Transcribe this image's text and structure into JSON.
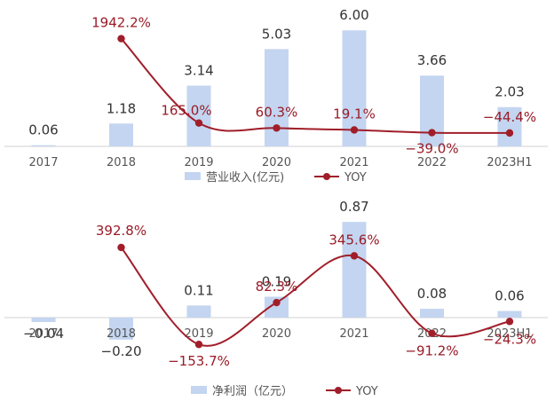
{
  "colors": {
    "bar": "#c3d5f0",
    "line": "#a01e2a",
    "axis": "#d0d0d0"
  },
  "chart_data": [
    {
      "type": "bar",
      "categories": [
        "2017",
        "2018",
        "2019",
        "2020",
        "2021",
        "2022",
        "2023H1"
      ],
      "series": [
        {
          "name": "营业收入(亿元)",
          "type": "bar",
          "values": [
            0.06,
            1.18,
            3.14,
            5.03,
            6.0,
            3.66,
            2.03
          ],
          "labels": [
            "0.06",
            "1.18",
            "3.14",
            "5.03",
            "6.00",
            "3.66",
            "2.03"
          ]
        },
        {
          "name": "YOY",
          "type": "line",
          "values": [
            null,
            1942.2,
            165.0,
            60.3,
            19.1,
            -39.0,
            -44.4
          ],
          "labels": [
            "",
            "1942.2%",
            "165.0%",
            "60.3%",
            "19.1%",
            "−39.0%",
            "−44.4%"
          ]
        }
      ],
      "legend": [
        "营业收入(亿元)",
        "YOY"
      ],
      "legend_position": "bottom",
      "ylim_bar": [
        0,
        7
      ],
      "ylim_line": [
        -60,
        2050
      ]
    },
    {
      "type": "bar",
      "categories": [
        "2017",
        "2018",
        "2019",
        "2020",
        "2021",
        "2022",
        "2023H1"
      ],
      "series": [
        {
          "name": "净利润（亿元）",
          "type": "bar",
          "values": [
            -0.04,
            -0.2,
            0.11,
            0.19,
            0.87,
            0.08,
            0.06
          ],
          "labels": [
            "−0.04",
            "−0.20",
            "0.11",
            "0.19",
            "0.87",
            "0.08",
            "0.06"
          ]
        },
        {
          "name": "YOY",
          "type": "line",
          "values": [
            null,
            392.8,
            -153.7,
            82.3,
            345.6,
            -91.2,
            -24.3
          ],
          "labels": [
            "",
            "392.8%",
            "−153.7%",
            "82.3%",
            "345.6%",
            "−91.2%",
            "−24.3%"
          ]
        }
      ],
      "legend": [
        "净利润（亿元）",
        "YOY"
      ],
      "legend_position": "bottom",
      "ylim_bar": [
        -0.3,
        1.0
      ],
      "ylim_line": [
        -160,
        400
      ]
    }
  ]
}
